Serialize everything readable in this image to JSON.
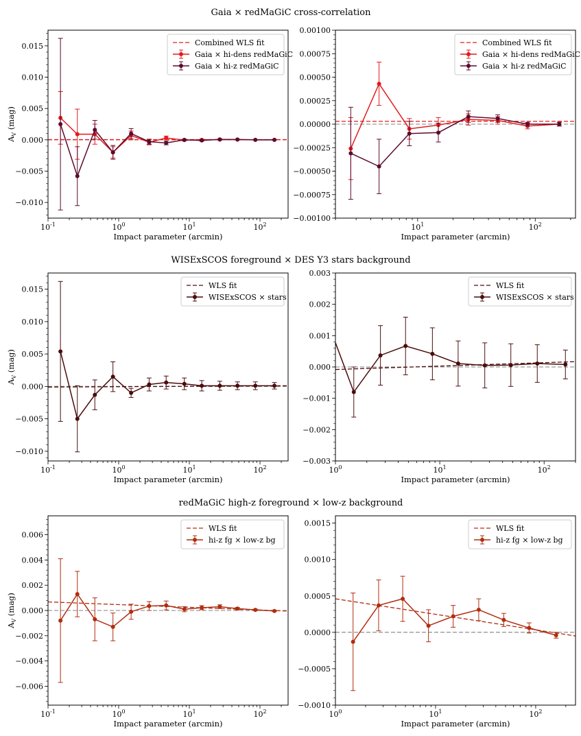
{
  "colors": {
    "red": "#e41a1c",
    "maroon": "#5c0a2e",
    "darkbrown": "#4a0c0c",
    "rust": "#b02d0f",
    "ref": "#808080"
  },
  "rows": [
    {
      "title": "Gaia × redMaGiC cross-correlation"
    },
    {
      "title": "WISExSCOS foreground × DES Y3 stars background"
    },
    {
      "title": "redMaGiC high-z foreground × low-z background"
    }
  ],
  "chart_data": [
    {
      "type": "line",
      "xscale": "log",
      "xlabel": "Impact parameter (arcmin)",
      "ylabel": "A_V (mag)",
      "xlim": [
        0.1,
        250
      ],
      "ylim": [
        -0.0125,
        0.0175
      ],
      "yticks": [
        "0.015",
        "0.010",
        "0.005",
        "0.000",
        "−0.005",
        "−0.010"
      ],
      "yticks_v": [
        0.015,
        0.01,
        0.005,
        0.0,
        -0.005,
        -0.01
      ],
      "legend_loc": "upper right",
      "fit": {
        "name": "Combined WLS fit",
        "color": "#e41a1c",
        "x": [
          0.1,
          250
        ],
        "y": [
          3e-05,
          3e-05
        ]
      },
      "series": [
        {
          "name": "Gaia × hi-dens redMaGiC",
          "color": "#e41a1c",
          "x": [
            0.15,
            0.26,
            0.46,
            0.83,
            1.5,
            2.7,
            4.7,
            8.5,
            15,
            27,
            48,
            86,
            160
          ],
          "y": [
            0.0035,
            0.0009,
            0.0009,
            -0.002,
            0.0007,
            -0.0004,
            0.0003,
            -5e-05,
            0.0,
            3e-05,
            3e-05,
            0.0,
            0.0
          ],
          "err": [
            0.0042,
            0.004,
            0.0016,
            0.0009,
            0.0007,
            0.0004,
            0.0003,
            0.0001,
            0.0001,
            7e-05,
            5e-05,
            3e-05,
            2e-05
          ]
        },
        {
          "name": "Gaia × hi-z redMaGiC",
          "color": "#5c0a2e",
          "x": [
            0.15,
            0.26,
            0.46,
            0.83,
            1.5,
            2.7,
            4.7,
            8.5,
            15,
            27,
            48,
            86,
            160
          ],
          "y": [
            0.0025,
            -0.0058,
            0.0016,
            -0.002,
            0.001,
            -0.0003,
            -0.0005,
            0.0,
            -0.0001,
            7e-05,
            5e-05,
            0.0,
            0.0
          ],
          "err": [
            0.0137,
            0.0047,
            0.0015,
            0.0011,
            0.0008,
            0.0004,
            0.0003,
            0.0001,
            0.0001,
            7e-05,
            5e-05,
            3e-05,
            2e-05
          ]
        }
      ]
    },
    {
      "type": "line",
      "xscale": "log",
      "xlabel": "Impact parameter (arcmin)",
      "ylabel": "",
      "xlim": [
        2.0,
        220
      ],
      "ylim": [
        -0.001,
        0.001
      ],
      "yticks": [
        "0.00100",
        "0.00075",
        "0.00050",
        "0.00025",
        "0.00000",
        "−0.00025",
        "−0.00050",
        "−0.00075",
        "−0.00100"
      ],
      "yticks_v": [
        0.001,
        0.00075,
        0.0005,
        0.00025,
        0.0,
        -0.00025,
        -0.0005,
        -0.00075,
        -0.001
      ],
      "legend_loc": "upper right",
      "fit": {
        "name": "Combined WLS fit",
        "color": "#e41a1c",
        "x": [
          2.0,
          220
        ],
        "y": [
          3e-05,
          3e-05
        ]
      },
      "series": [
        {
          "name": "Gaia × hi-dens redMaGiC",
          "color": "#e41a1c",
          "x": [
            2.7,
            4.7,
            8.5,
            15,
            27,
            48,
            86,
            160
          ],
          "y": [
            -0.00026,
            0.00043,
            -5e-05,
            -1e-05,
            5e-05,
            4e-05,
            -2e-05,
            0.0
          ],
          "err": [
            0.00033,
            0.00023,
            0.00011,
            8e-05,
            6e-05,
            4e-05,
            3e-05,
            2e-05
          ]
        },
        {
          "name": "Gaia × hi-z redMaGiC",
          "color": "#5c0a2e",
          "x": [
            2.7,
            4.7,
            8.5,
            15,
            27,
            48,
            86,
            160
          ],
          "y": [
            -0.00031,
            -0.00045,
            -0.0001,
            -9e-05,
            8e-05,
            6e-05,
            0.0,
            0.0
          ],
          "err": [
            0.00049,
            0.00029,
            0.00013,
            0.0001,
            6e-05,
            4e-05,
            2e-05,
            2e-05
          ]
        }
      ]
    },
    {
      "type": "line",
      "xscale": "log",
      "xlabel": "Impact parameter (arcmin)",
      "ylabel": "A_V (mag)",
      "xlim": [
        0.1,
        250
      ],
      "ylim": [
        -0.0115,
        0.0175
      ],
      "yticks": [
        "0.015",
        "0.010",
        "0.005",
        "0.000",
        "−0.005",
        "−0.010"
      ],
      "yticks_v": [
        0.015,
        0.01,
        0.005,
        0.0,
        -0.005,
        -0.01
      ],
      "legend_loc": "upper right",
      "fit": {
        "name": "WLS fit",
        "color": "#4a0c0c",
        "x": [
          0.1,
          250
        ],
        "y": [
          -0.0001,
          0.0001
        ]
      },
      "series": [
        {
          "name": "WISExSCOS × stars",
          "color": "#4a0c0c",
          "x": [
            0.15,
            0.26,
            0.46,
            0.83,
            1.5,
            2.7,
            4.7,
            8.5,
            15,
            27,
            48,
            86,
            160
          ],
          "y": [
            0.0054,
            -0.005,
            -0.0013,
            0.0015,
            -0.001,
            0.0003,
            0.0006,
            0.0004,
            0.0001,
            0.0001,
            0.0001,
            0.0001,
            0.0001
          ],
          "err": [
            0.0108,
            0.0051,
            0.0023,
            0.0023,
            0.0007,
            0.001,
            0.001,
            0.0009,
            0.0008,
            0.0007,
            0.0006,
            0.0006,
            0.0005
          ]
        }
      ]
    },
    {
      "type": "line",
      "xscale": "log",
      "xlabel": "Impact parameter (arcmin)",
      "ylabel": "",
      "xlim": [
        1.0,
        200
      ],
      "ylim": [
        -0.003,
        0.003
      ],
      "yticks": [
        "0.003",
        "0.002",
        "0.001",
        "0.000",
        "−0.001",
        "−0.002",
        "−0.003"
      ],
      "yticks_v": [
        0.003,
        0.002,
        0.001,
        0.0,
        -0.001,
        -0.002,
        -0.003
      ],
      "legend_loc": "upper right",
      "fit": {
        "name": "WLS fit",
        "color": "#4a0c0c",
        "x": [
          1.0,
          200
        ],
        "y": [
          -8e-05,
          0.00017
        ]
      },
      "series": [
        {
          "name": "WISExSCOS × stars",
          "color": "#4a0c0c",
          "x": [
            0.83,
            1.5,
            2.7,
            4.7,
            8.5,
            15,
            27,
            48,
            86,
            160
          ],
          "y": [
            0.0015,
            -0.0008,
            0.00037,
            0.00067,
            0.00042,
            0.00011,
            5e-05,
            6e-05,
            0.00011,
            8e-05
          ],
          "err": [
            0.0023,
            0.0008,
            0.00095,
            0.00092,
            0.00083,
            0.00072,
            0.00072,
            0.00068,
            0.0006,
            0.00046
          ]
        }
      ]
    },
    {
      "type": "line",
      "xscale": "log",
      "xlabel": "Impact parameter (arcmin)",
      "ylabel": "A_V (mag)",
      "xlim": [
        0.1,
        250
      ],
      "ylim": [
        -0.0075,
        0.0075
      ],
      "yticks": [
        "0.006",
        "0.004",
        "0.002",
        "0.000",
        "−0.002",
        "−0.004",
        "−0.006"
      ],
      "yticks_v": [
        0.006,
        0.004,
        0.002,
        0.0,
        -0.002,
        -0.004,
        -0.006
      ],
      "legend_loc": "upper right",
      "fit": {
        "name": "WLS fit",
        "color": "#b02d0f",
        "x": [
          0.1,
          250
        ],
        "y": [
          0.00068,
          -5e-05
        ]
      },
      "series": [
        {
          "name": "hi-z fg × low-z bg",
          "color": "#b02d0f",
          "x": [
            0.15,
            0.26,
            0.46,
            0.83,
            1.5,
            2.7,
            4.7,
            8.5,
            15,
            27,
            48,
            86,
            160
          ],
          "y": [
            -0.0008,
            0.0013,
            -0.0007,
            -0.0013,
            -0.0001,
            0.00035,
            0.0004,
            0.0001,
            0.00022,
            0.0003,
            0.00015,
            5e-05,
            -4e-05
          ],
          "err": [
            0.0049,
            0.0018,
            0.0017,
            0.0011,
            0.0006,
            0.00035,
            0.00035,
            0.0002,
            0.00016,
            0.00015,
            9e-05,
            6e-05,
            4e-05
          ]
        }
      ]
    },
    {
      "type": "line",
      "xscale": "log",
      "xlabel": "Impact parameter (arcmin)",
      "ylabel": "",
      "xlim": [
        1.0,
        250
      ],
      "ylim": [
        -0.001,
        0.0016
      ],
      "yticks": [
        "0.0015",
        "0.0010",
        "0.0005",
        "0.0000",
        "−0.0005",
        "−0.0010"
      ],
      "yticks_v": [
        0.0015,
        0.001,
        0.0005,
        0.0,
        -0.0005,
        -0.001
      ],
      "legend_loc": "upper right",
      "fit": {
        "name": "WLS fit",
        "color": "#b02d0f",
        "x": [
          1.0,
          250
        ],
        "y": [
          0.00046,
          -5e-05
        ]
      },
      "series": [
        {
          "name": "hi-z fg × low-z bg",
          "color": "#b02d0f",
          "x": [
            1.5,
            2.7,
            4.7,
            8.5,
            15,
            27,
            48,
            86,
            160
          ],
          "y": [
            -0.00013,
            0.00037,
            0.00046,
            9e-05,
            0.00022,
            0.00031,
            0.00017,
            6e-05,
            -4e-05
          ],
          "err": [
            0.00067,
            0.00035,
            0.00031,
            0.00022,
            0.00015,
            0.00015,
            9e-05,
            7e-05,
            4e-05
          ]
        }
      ]
    }
  ]
}
